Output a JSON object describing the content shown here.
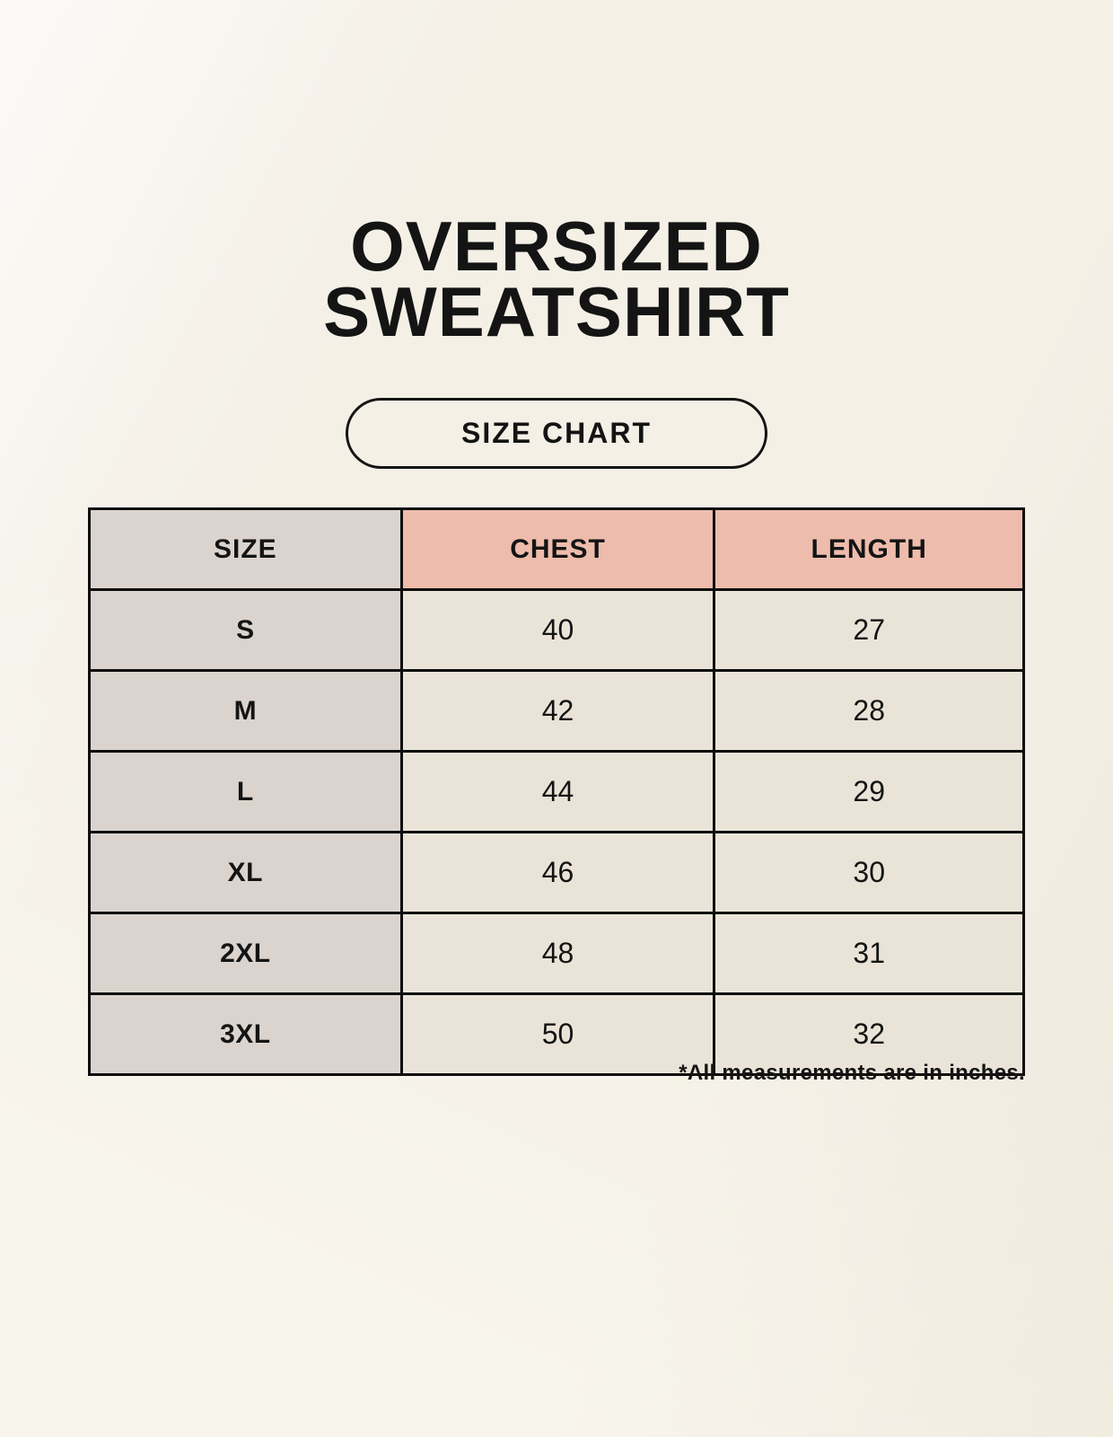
{
  "header": {
    "title_line1": "OVERSIZED",
    "title_line2": "SWEATSHIRT",
    "badge_label": "SIZE CHART"
  },
  "chart_data": {
    "type": "table",
    "title": "OVERSIZED SWEATSHIRT",
    "subtitle": "SIZE CHART",
    "columns": [
      "SIZE",
      "CHEST",
      "LENGTH"
    ],
    "rows": [
      [
        "S",
        "40",
        "27"
      ],
      [
        "M",
        "42",
        "28"
      ],
      [
        "L",
        "44",
        "29"
      ],
      [
        "XL",
        "46",
        "30"
      ],
      [
        "2XL",
        "48",
        "31"
      ],
      [
        "3XL",
        "50",
        "32"
      ]
    ],
    "footnote": "*All measurements are in inches.",
    "units": "inches"
  },
  "colors": {
    "page_bg": "#f8f5ed",
    "cell_gray": "#dbd4ce",
    "cell_pink": "#eebcac",
    "cell_cream": "#eae4d8",
    "border": "#0d0d0d",
    "ink": "#141414"
  }
}
